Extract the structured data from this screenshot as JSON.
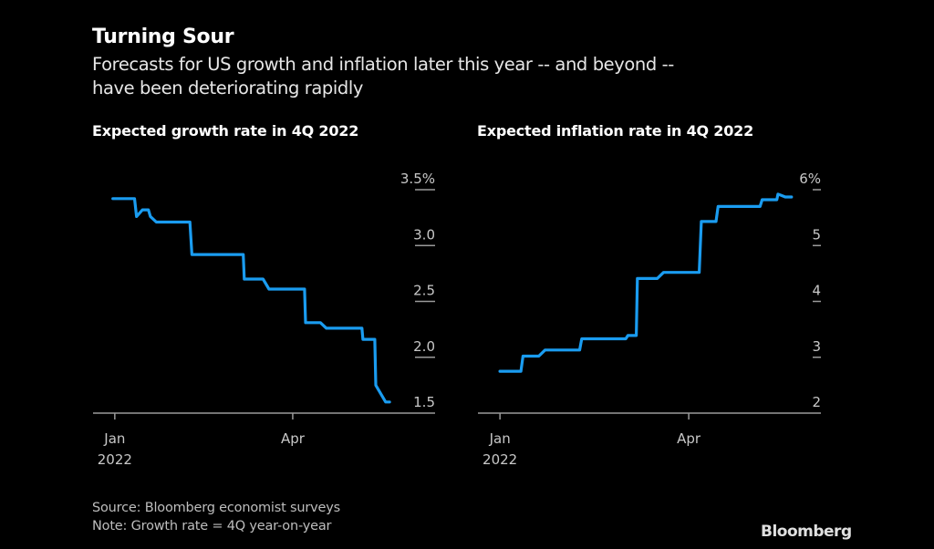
{
  "header": {
    "title": "Turning Sour",
    "subtitle_line1": "Forecasts for US growth and inflation later this year -- and beyond --",
    "subtitle_line2": "have been deteriorating rapidly"
  },
  "footer": {
    "source": "Source: Bloomberg economist surveys",
    "note": "Note: Growth rate = 4Q year-on-year",
    "brand": "Bloomberg"
  },
  "colors": {
    "line": "#1a9cf0",
    "axis": "#9a9a9a",
    "background": "#000000"
  },
  "chart_data": [
    {
      "type": "line",
      "title": "Expected growth rate in 4Q 2022",
      "xlabel": "",
      "ylabel": "",
      "x_unit": "days since Jan 1, 2022",
      "xlim": [
        -11,
        162
      ],
      "ylim": [
        1.5,
        3.5
      ],
      "y_ticks": [
        1.5,
        2.0,
        2.5,
        3.0,
        3.5
      ],
      "y_tick_labels": [
        "1.5",
        "2.0",
        "2.5",
        "3.0",
        "3.5%"
      ],
      "x_ticks": [
        {
          "day": 0,
          "label": "Jan",
          "sublabel": "2022"
        },
        {
          "day": 90,
          "label": "Apr",
          "sublabel": ""
        }
      ],
      "series": [
        {
          "name": "Expected growth rate",
          "x": [
            -1,
            10,
            11,
            14,
            17,
            18,
            21,
            38,
            39,
            65,
            65.5,
            75,
            78,
            96,
            96.5,
            104,
            107,
            125,
            125.5,
            131.5,
            132,
            136,
            137,
            139
          ],
          "values": [
            3.42,
            3.42,
            3.26,
            3.32,
            3.32,
            3.26,
            3.21,
            3.21,
            2.92,
            2.92,
            2.7,
            2.7,
            2.61,
            2.61,
            2.31,
            2.31,
            2.26,
            2.26,
            2.16,
            2.16,
            1.75,
            1.63,
            1.6,
            1.6
          ]
        }
      ],
      "grid": false,
      "legend": "none"
    },
    {
      "type": "line",
      "title": "Expected inflation rate in 4Q 2022",
      "xlabel": "",
      "ylabel": "",
      "x_unit": "days since Jan 1, 2022",
      "xlim": [
        -10.5,
        153
      ],
      "ylim": [
        2,
        6
      ],
      "y_ticks": [
        2,
        3,
        4,
        5,
        6
      ],
      "y_tick_labels": [
        "2",
        "3",
        "4",
        "5",
        "6%"
      ],
      "x_ticks": [
        {
          "day": 0,
          "label": "Jan",
          "sublabel": "2022"
        },
        {
          "day": 90,
          "label": "Apr",
          "sublabel": ""
        }
      ],
      "series": [
        {
          "name": "Expected inflation rate",
          "x": [
            0,
            10,
            11,
            18.5,
            21.5,
            38,
            39,
            60,
            61,
            65,
            65.5,
            75,
            78,
            95,
            96,
            103,
            104,
            124,
            125,
            132,
            132.5,
            134,
            136,
            139
          ],
          "values": [
            2.75,
            2.75,
            3.02,
            3.02,
            3.13,
            3.13,
            3.33,
            3.33,
            3.39,
            3.39,
            4.41,
            4.41,
            4.52,
            4.52,
            5.43,
            5.43,
            5.7,
            5.7,
            5.82,
            5.82,
            5.92,
            5.9,
            5.87,
            5.87
          ]
        }
      ],
      "grid": false,
      "legend": "none"
    }
  ]
}
